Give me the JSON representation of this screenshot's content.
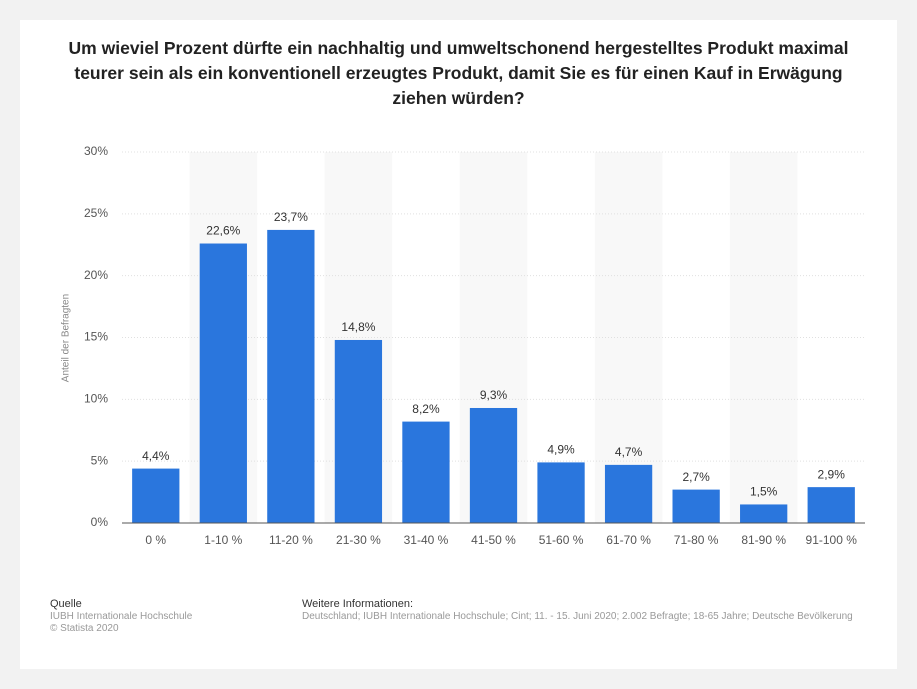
{
  "chart_data": {
    "type": "bar",
    "title": "Um wieviel Prozent dürfte ein nachhaltig und umweltschonend hergestelltes Produkt maximal teurer sein als ein konventionell erzeugtes Produkt, damit Sie es für einen Kauf in Erwägung ziehen würden?",
    "y_label": "Anteil der Befragten",
    "categories": [
      "0 %",
      "1-10 %",
      "11-20 %",
      "21-30 %",
      "31-40 %",
      "41-50 %",
      "51-60 %",
      "61-70 %",
      "71-80 %",
      "81-90 %",
      "91-100 %"
    ],
    "values": [
      4.4,
      22.6,
      23.7,
      14.8,
      8.2,
      9.3,
      4.9,
      4.7,
      2.7,
      1.5,
      2.9
    ],
    "value_labels": [
      "4,4%",
      "22,6%",
      "23,7%",
      "14,8%",
      "8,2%",
      "9,3%",
      "4,9%",
      "4,7%",
      "2,7%",
      "1,5%",
      "2,9%"
    ],
    "color": "#2a76dd",
    "ylim": [
      0,
      30
    ],
    "yticks": [
      {
        "value": 0,
        "label": "0%"
      },
      {
        "value": 5,
        "label": "5%"
      },
      {
        "value": 10,
        "label": "10%"
      },
      {
        "value": 15,
        "label": "15%"
      },
      {
        "value": 20,
        "label": "20%"
      },
      {
        "value": 25,
        "label": "25%"
      },
      {
        "value": 30,
        "label": "30%"
      }
    ],
    "grid": true
  },
  "footer": {
    "source_title": "Quelle",
    "source": "IUBH Internationale Hochschule",
    "copyright": "© Statista 2020",
    "info_title": "Weitere Informationen:",
    "info": "Deutschland; IUBH Internationale Hochschule; Cint; 11. - 15. Juni 2020; 2.002 Befragte; 18-65 Jahre; Deutsche Bevölkerung"
  }
}
